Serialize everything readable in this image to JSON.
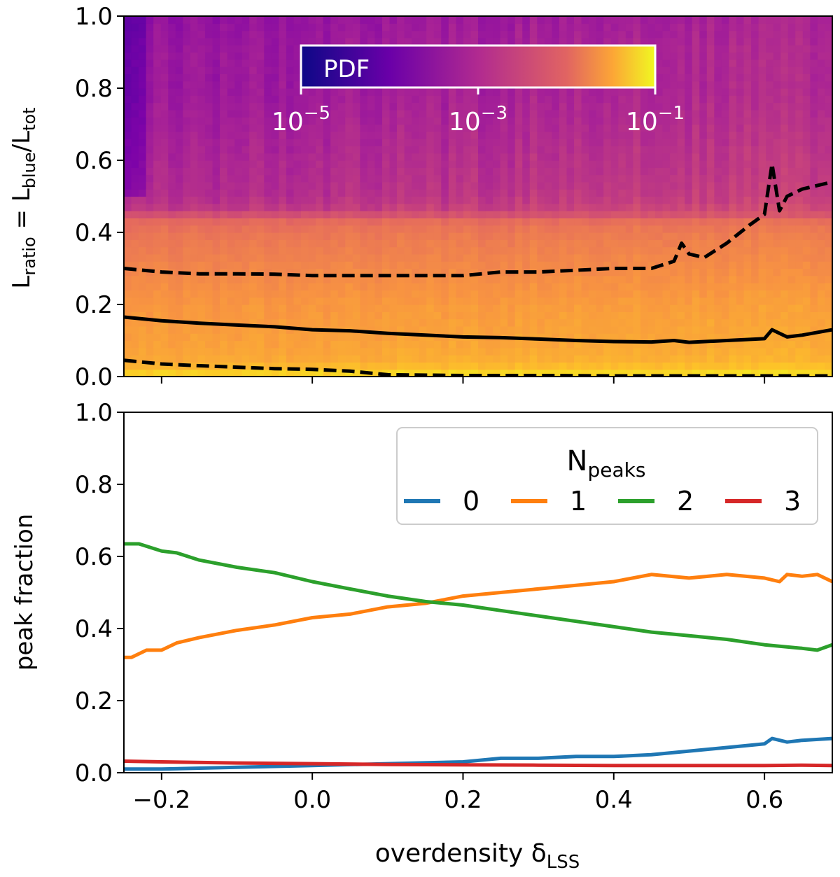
{
  "colors": {
    "n0": "#1f77b4",
    "n1": "#ff7f0e",
    "n2": "#2ca02c",
    "n3": "#d62728",
    "quantile_line": "#000000",
    "colormap": "plasma"
  },
  "chart_data": [
    {
      "type": "heatmap",
      "panel": "top",
      "ylabel": "L_ratio = L_blue/L_tot",
      "ylabel_parts": {
        "main": "L",
        "sub1": "ratio",
        "eq": " = L",
        "sub2": "blue",
        "slash": "/L",
        "sub3": "tot"
      },
      "xlim": [
        -0.25,
        0.69
      ],
      "ylim": [
        0.0,
        1.0
      ],
      "yticks": [
        0.0,
        0.2,
        0.4,
        0.6,
        0.8,
        1.0
      ],
      "ytick_labels": [
        "0.0",
        "0.2",
        "0.4",
        "0.6",
        "0.8",
        "1.0"
      ],
      "colorbar": {
        "label": "PDF",
        "scale": "log",
        "range": [
          1e-05,
          0.1
        ],
        "ticks": [
          {
            "base": "10",
            "exp": "−5"
          },
          {
            "base": "10",
            "exp": "−3"
          },
          {
            "base": "10",
            "exp": "−1"
          }
        ]
      },
      "heatmap_profile": {
        "y": [
          0.0,
          0.02,
          0.05,
          0.1,
          0.2,
          0.3,
          0.4,
          0.44,
          0.46,
          0.5,
          0.6,
          0.7,
          0.8,
          0.9,
          1.0
        ],
        "log10_pdf": [
          -1.2,
          -1.6,
          -1.8,
          -1.9,
          -2.0,
          -2.2,
          -2.4,
          -2.6,
          -3.2,
          -3.4,
          -3.5,
          -3.6,
          -3.7,
          -3.7,
          -3.8
        ]
      },
      "series": [
        {
          "style": "solid",
          "x": [
            -0.25,
            -0.2,
            -0.15,
            -0.1,
            -0.05,
            0.0,
            0.05,
            0.1,
            0.15,
            0.2,
            0.25,
            0.3,
            0.35,
            0.4,
            0.45,
            0.48,
            0.5,
            0.55,
            0.6,
            0.61,
            0.63,
            0.65,
            0.69
          ],
          "y": [
            0.165,
            0.155,
            0.148,
            0.143,
            0.138,
            0.13,
            0.127,
            0.12,
            0.115,
            0.11,
            0.108,
            0.104,
            0.1,
            0.097,
            0.096,
            0.1,
            0.095,
            0.1,
            0.105,
            0.13,
            0.11,
            0.115,
            0.13
          ]
        },
        {
          "style": "dashed",
          "x": [
            -0.25,
            -0.2,
            -0.15,
            -0.1,
            -0.05,
            0.0,
            0.05,
            0.1,
            0.15,
            0.2,
            0.25,
            0.3,
            0.35,
            0.4,
            0.45,
            0.48,
            0.49,
            0.5,
            0.52,
            0.55,
            0.58,
            0.6,
            0.61,
            0.62,
            0.63,
            0.65,
            0.67,
            0.69
          ],
          "y": [
            0.3,
            0.29,
            0.285,
            0.285,
            0.284,
            0.28,
            0.28,
            0.28,
            0.28,
            0.28,
            0.29,
            0.29,
            0.295,
            0.3,
            0.3,
            0.32,
            0.37,
            0.34,
            0.33,
            0.37,
            0.42,
            0.45,
            0.59,
            0.46,
            0.5,
            0.52,
            0.53,
            0.54
          ]
        },
        {
          "style": "dashed",
          "x": [
            -0.25,
            -0.2,
            -0.15,
            -0.1,
            -0.05,
            0.0,
            0.05,
            0.1,
            0.2,
            0.3,
            0.4,
            0.5,
            0.6,
            0.69
          ],
          "y": [
            0.045,
            0.035,
            0.03,
            0.026,
            0.022,
            0.02,
            0.015,
            0.005,
            0.003,
            0.003,
            0.002,
            0.002,
            0.002,
            0.002
          ]
        }
      ]
    },
    {
      "type": "line",
      "panel": "bottom",
      "ylabel": "peak fraction",
      "xlabel": "overdensity δ_LSS",
      "xlabel_parts": {
        "main": "overdensity δ",
        "sub": "LSS"
      },
      "xlim": [
        -0.25,
        0.69
      ],
      "ylim": [
        0.0,
        1.0
      ],
      "xticks": [
        -0.2,
        0.0,
        0.2,
        0.4,
        0.6
      ],
      "xtick_labels": [
        "−0.2",
        "0.0",
        "0.2",
        "0.4",
        "0.6"
      ],
      "yticks": [
        0.0,
        0.2,
        0.4,
        0.6,
        0.8,
        1.0
      ],
      "ytick_labels": [
        "0.0",
        "0.2",
        "0.4",
        "0.6",
        "0.8",
        "1.0"
      ],
      "legend": {
        "title_main": "N",
        "title_sub": "peaks",
        "placement": "upper-right"
      },
      "series": [
        {
          "name": "0",
          "color": "#1f77b4",
          "x": [
            -0.25,
            -0.2,
            -0.1,
            0.0,
            0.1,
            0.2,
            0.25,
            0.3,
            0.35,
            0.4,
            0.45,
            0.5,
            0.55,
            0.6,
            0.61,
            0.63,
            0.65,
            0.69
          ],
          "y": [
            0.01,
            0.01,
            0.015,
            0.02,
            0.025,
            0.03,
            0.04,
            0.04,
            0.045,
            0.045,
            0.05,
            0.06,
            0.07,
            0.08,
            0.095,
            0.085,
            0.09,
            0.095
          ]
        },
        {
          "name": "1",
          "color": "#ff7f0e",
          "x": [
            -0.25,
            -0.24,
            -0.22,
            -0.2,
            -0.18,
            -0.15,
            -0.1,
            -0.05,
            0.0,
            0.05,
            0.1,
            0.15,
            0.2,
            0.25,
            0.3,
            0.35,
            0.4,
            0.45,
            0.5,
            0.55,
            0.6,
            0.62,
            0.63,
            0.65,
            0.67,
            0.69
          ],
          "y": [
            0.32,
            0.32,
            0.34,
            0.34,
            0.36,
            0.375,
            0.395,
            0.41,
            0.43,
            0.44,
            0.46,
            0.47,
            0.49,
            0.5,
            0.51,
            0.52,
            0.53,
            0.55,
            0.54,
            0.55,
            0.54,
            0.53,
            0.55,
            0.545,
            0.55,
            0.53
          ]
        },
        {
          "name": "2",
          "color": "#2ca02c",
          "x": [
            -0.25,
            -0.23,
            -0.2,
            -0.18,
            -0.15,
            -0.1,
            -0.05,
            0.0,
            0.05,
            0.1,
            0.15,
            0.2,
            0.25,
            0.3,
            0.35,
            0.4,
            0.45,
            0.5,
            0.55,
            0.6,
            0.65,
            0.67,
            0.69
          ],
          "y": [
            0.635,
            0.635,
            0.615,
            0.61,
            0.59,
            0.57,
            0.555,
            0.53,
            0.51,
            0.49,
            0.475,
            0.465,
            0.45,
            0.435,
            0.42,
            0.405,
            0.39,
            0.38,
            0.37,
            0.355,
            0.345,
            0.34,
            0.355
          ]
        },
        {
          "name": "3",
          "color": "#d62728",
          "x": [
            -0.25,
            -0.2,
            -0.1,
            0.0,
            0.1,
            0.2,
            0.3,
            0.4,
            0.5,
            0.6,
            0.65,
            0.69
          ],
          "y": [
            0.032,
            0.03,
            0.027,
            0.025,
            0.023,
            0.022,
            0.021,
            0.02,
            0.02,
            0.02,
            0.021,
            0.02
          ]
        }
      ]
    }
  ]
}
